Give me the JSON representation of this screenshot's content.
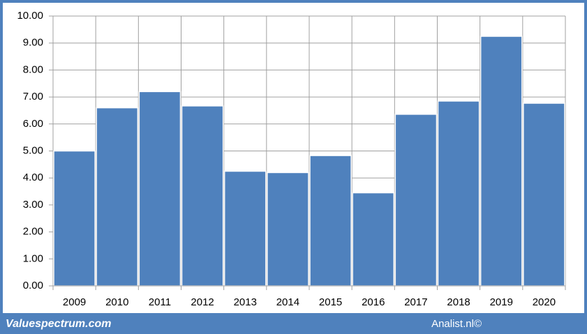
{
  "chart_data": {
    "type": "bar",
    "categories": [
      "2009",
      "2010",
      "2011",
      "2012",
      "2013",
      "2014",
      "2015",
      "2016",
      "2017",
      "2018",
      "2019",
      "2020"
    ],
    "values": [
      5.0,
      6.6,
      7.2,
      6.67,
      4.25,
      4.2,
      4.83,
      3.45,
      6.36,
      6.85,
      9.25,
      6.77
    ],
    "color": "#4f81bd",
    "ylim": [
      0,
      10
    ],
    "yticks": [
      {
        "value": 0,
        "label": "0.00"
      },
      {
        "value": 1,
        "label": "1.00"
      },
      {
        "value": 2,
        "label": "2.00"
      },
      {
        "value": 3,
        "label": "3.00"
      },
      {
        "value": 4,
        "label": "4.00"
      },
      {
        "value": 5,
        "label": "5.00"
      },
      {
        "value": 6,
        "label": "6.00"
      },
      {
        "value": 7,
        "label": "7.00"
      },
      {
        "value": 8,
        "label": "8.00"
      },
      {
        "value": 9,
        "label": "9.00"
      },
      {
        "value": 10,
        "label": "10.00"
      }
    ],
    "grid": true,
    "footer_left": "Valuespectrum.com",
    "footer_right": "Analist.nl©"
  }
}
